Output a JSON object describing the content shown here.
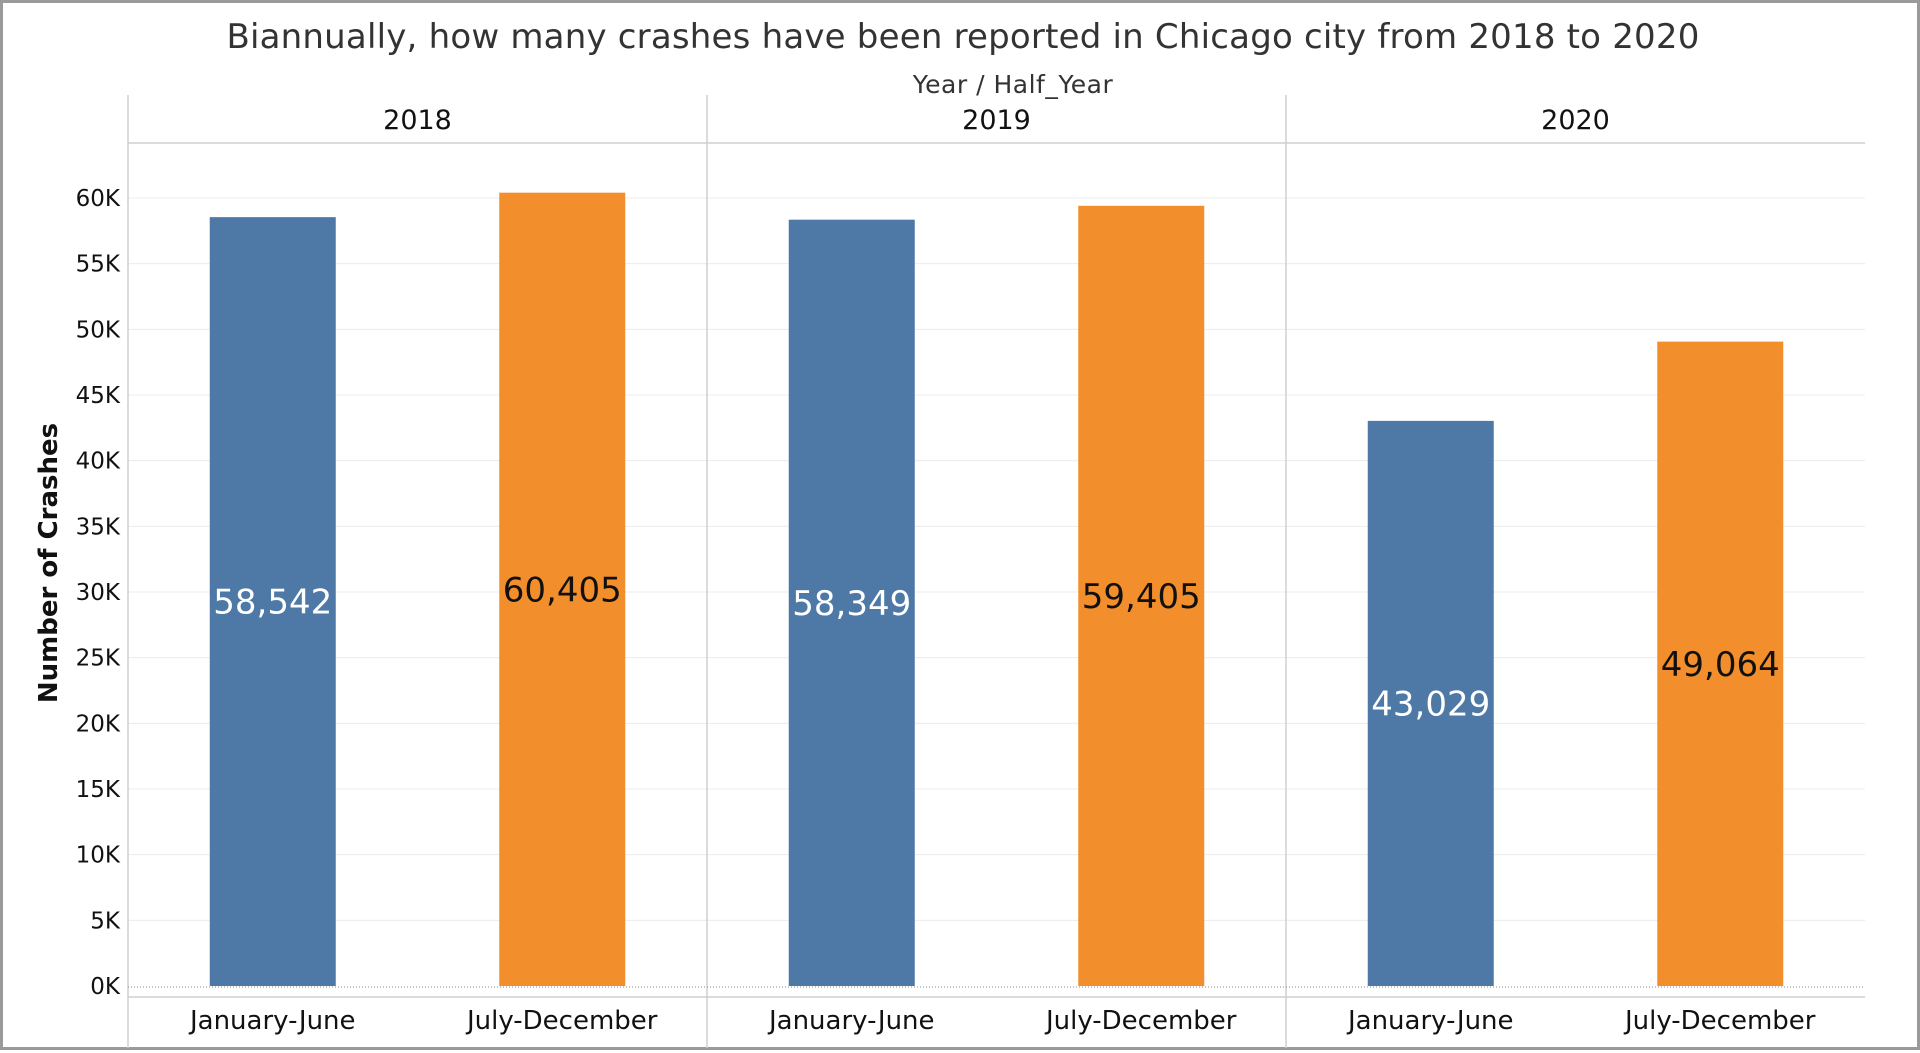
{
  "chart_data": {
    "type": "bar",
    "title": "Biannually, how many crashes have been reported in Chicago city from 2018 to 2020",
    "column_header": "Year / Half_Year",
    "ylabel": "Number of Crashes",
    "xlabel": "",
    "ylim": [
      0,
      63000
    ],
    "yticks": [
      0,
      5000,
      10000,
      15000,
      20000,
      25000,
      30000,
      35000,
      40000,
      45000,
      50000,
      55000,
      60000
    ],
    "ytick_labels": [
      "0K",
      "5K",
      "10K",
      "15K",
      "20K",
      "25K",
      "30K",
      "35K",
      "40K",
      "45K",
      "50K",
      "55K",
      "60K"
    ],
    "grid": true,
    "legend": "none",
    "colors": {
      "January-June": "#4e79a7",
      "July-December": "#f28e2b",
      "label_on_blue": "#ffffff",
      "label_on_orange": "#111111"
    },
    "groups": [
      {
        "year": "2018",
        "bars": [
          {
            "category": "January-June",
            "value": 58542,
            "label": "58,542"
          },
          {
            "category": "July-December",
            "value": 60405,
            "label": "60,405"
          }
        ]
      },
      {
        "year": "2019",
        "bars": [
          {
            "category": "January-June",
            "value": 58349,
            "label": "58,349"
          },
          {
            "category": "July-December",
            "value": 59405,
            "label": "59,405"
          }
        ]
      },
      {
        "year": "2020",
        "bars": [
          {
            "category": "January-June",
            "value": 43029,
            "label": "43,029"
          },
          {
            "category": "July-December",
            "value": 49064,
            "label": "49,064"
          }
        ]
      }
    ]
  }
}
